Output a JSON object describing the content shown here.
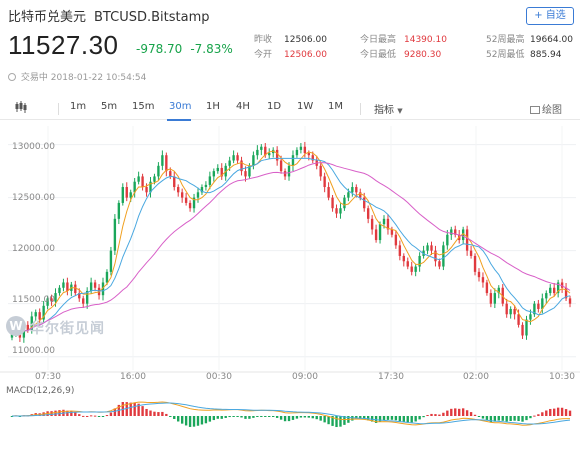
{
  "header": {
    "name": "比特币兑美元",
    "symbol": "BTCUSD.Bitstamp",
    "watch_label": "+ 自选",
    "price": "11527.30",
    "change": "-978.70",
    "change_pct": "-7.83%",
    "status": "交易中",
    "datetime": "2018-01-22 10:54:54"
  },
  "stats": {
    "prev_close_label": "昨收",
    "prev_close": "12506.00",
    "open_label": "今开",
    "open": "12506.00",
    "high_label": "今日最高",
    "high": "14390.10",
    "low_label": "今日最低",
    "low": "9280.30",
    "wk52_high_label": "52周最高",
    "wk52_high": "19664.00",
    "wk52_low_label": "52周最低",
    "wk52_low": "885.94"
  },
  "toolbar": {
    "intervals": [
      "1m",
      "5m",
      "15m",
      "30m",
      "1H",
      "4H",
      "1D",
      "1W",
      "1M"
    ],
    "active_interval": "30m",
    "indicators_label": "指标",
    "screenshot_label": "绘图"
  },
  "chart_data": {
    "type": "candlestick",
    "y_ticks": [
      "13000.00",
      "12500.00",
      "12000.00",
      "11500.00",
      "11000.00"
    ],
    "ylim": [
      10950,
      13100
    ],
    "x_ticks": [
      "07:30",
      "16:00",
      "00:30",
      "09:00",
      "17:30",
      "02:00",
      "10:30"
    ],
    "watermark": "华尔街见闻",
    "up_color": "#1aa65a",
    "down_color": "#e0393e",
    "ma_colors": [
      "#f0a020",
      "#4aa8e0",
      "#d860c8"
    ],
    "closes": [
      11220,
      11280,
      11180,
      11300,
      11250,
      11380,
      11420,
      11350,
      11480,
      11550,
      11520,
      11600,
      11650,
      11700,
      11620,
      11680,
      11600,
      11550,
      11500,
      11620,
      11700,
      11650,
      11580,
      11700,
      11800,
      12000,
      12300,
      12450,
      12600,
      12500,
      12550,
      12650,
      12700,
      12600,
      12550,
      12650,
      12700,
      12800,
      12900,
      12750,
      12700,
      12600,
      12550,
      12500,
      12450,
      12400,
      12500,
      12550,
      12600,
      12620,
      12700,
      12750,
      12780,
      12700,
      12800,
      12850,
      12900,
      12850,
      12750,
      12700,
      12800,
      12900,
      12950,
      12980,
      12900,
      12920,
      12950,
      12850,
      12750,
      12700,
      12800,
      12900,
      12950,
      12980,
      12920,
      12900,
      12850,
      12800,
      12700,
      12600,
      12500,
      12400,
      12350,
      12400,
      12500,
      12550,
      12600,
      12550,
      12500,
      12400,
      12300,
      12200,
      12100,
      12250,
      12300,
      12200,
      12150,
      12050,
      11950,
      11900,
      11850,
      11800,
      11850,
      11950,
      12000,
      12050,
      12000,
      11900,
      11850,
      12050,
      12150,
      12200,
      12150,
      12100,
      12200,
      12000,
      11950,
      11800,
      11750,
      11700,
      11600,
      11500,
      11600,
      11650,
      11500,
      11400,
      11450,
      11400,
      11300,
      11200,
      11350,
      11400,
      11500,
      11450,
      11550,
      11600,
      11650,
      11600,
      11700,
      11650,
      11550,
      11500
    ]
  },
  "macd": {
    "label": "MACD(12,26,9)"
  }
}
